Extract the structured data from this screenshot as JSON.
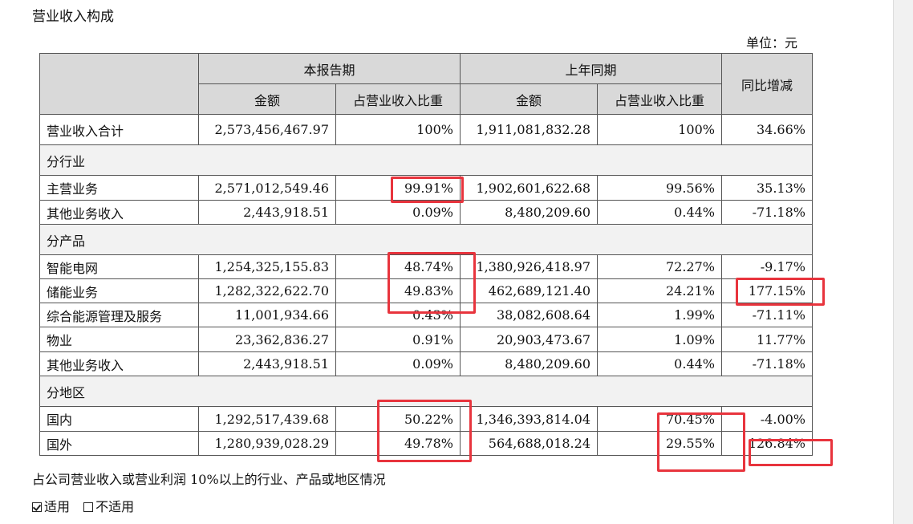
{
  "title": "营业收入构成",
  "unit_label": "单位：元",
  "headers": {
    "current_period": "本报告期",
    "prior_period": "上年同期",
    "amount": "金额",
    "ratio": "占营业收入比重",
    "yoy": "同比增减"
  },
  "total_row": [
    "营业收入合计",
    "2,573,456,467.97",
    "100%",
    "1,911,081,832.28",
    "100%",
    "34.66%"
  ],
  "groups": [
    {
      "label": "分行业",
      "rows": [
        [
          "主营业务",
          "2,571,012,549.46",
          "99.91%",
          "1,902,601,622.68",
          "99.56%",
          "35.13%"
        ],
        [
          "其他业务收入",
          "2,443,918.51",
          "0.09%",
          "8,480,209.60",
          "0.44%",
          "-71.18%"
        ]
      ]
    },
    {
      "label": "分产品",
      "rows": [
        [
          "智能电网",
          "1,254,325,155.83",
          "48.74%",
          "1,380,926,418.97",
          "72.27%",
          "-9.17%"
        ],
        [
          "储能业务",
          "1,282,322,622.70",
          "49.83%",
          "462,689,121.40",
          "24.21%",
          "177.15%"
        ],
        [
          "综合能源管理及服务",
          "11,001,934.66",
          "0.43%",
          "38,082,608.64",
          "1.99%",
          "-71.11%"
        ],
        [
          "物业",
          "23,362,836.27",
          "0.91%",
          "20,903,473.67",
          "1.09%",
          "11.77%"
        ],
        [
          "其他业务收入",
          "2,443,918.51",
          "0.09%",
          "8,480,209.60",
          "0.44%",
          "-71.18%"
        ]
      ]
    },
    {
      "label": "分地区",
      "rows": [
        [
          "国内",
          "1,292,517,439.68",
          "50.22%",
          "1,346,393,814.04",
          "70.45%",
          "-4.00%"
        ],
        [
          "国外",
          "1,280,939,028.29",
          "49.78%",
          "564,688,018.24",
          "29.55%",
          "126.84%"
        ]
      ]
    }
  ],
  "note": "占公司营业收入或营业利润 10%以上的行业、产品或地区情况",
  "options": {
    "applicable": "适用",
    "not_applicable": "不适用",
    "applicable_checked": true
  },
  "highlight_color": "#e8343d"
}
